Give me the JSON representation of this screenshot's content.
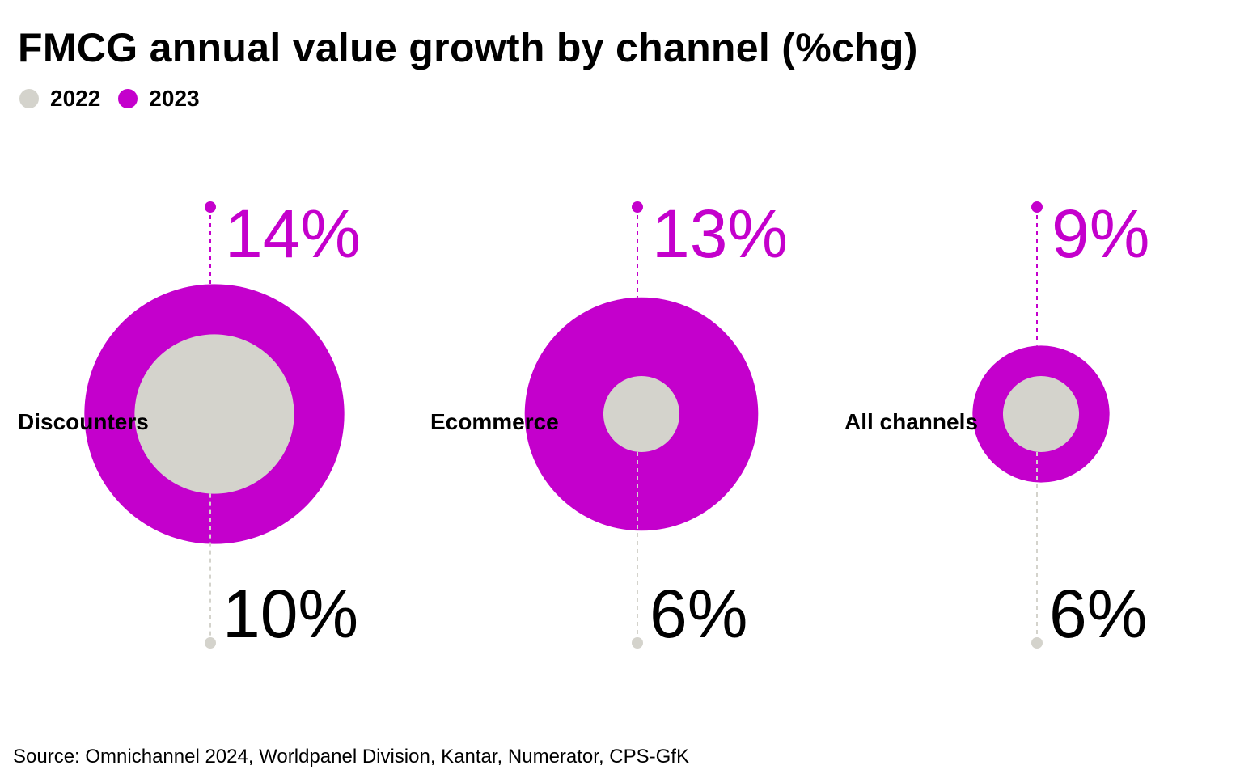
{
  "title": "FMCG annual value growth by channel (%chg)",
  "source": "Source: Omnichannel 2024, Worldpanel Division, Kantar, Numerator, CPS-GfK",
  "colors": {
    "y2022": "#d4d3cc",
    "y2023": "#c400cc",
    "text": "#000000"
  },
  "chart_data": {
    "type": "bubble",
    "title": "FMCG annual value growth by channel (%chg)",
    "legend_position": "top-left",
    "series": [
      {
        "name": "2022",
        "color": "#d4d3cc"
      },
      {
        "name": "2023",
        "color": "#c400cc"
      }
    ],
    "categories": [
      "Discounters",
      "Ecommerce",
      "All channels"
    ],
    "values_2022": [
      10,
      6,
      6
    ],
    "values_2023": [
      14,
      13,
      9
    ],
    "labels_2022": [
      "10%",
      "6%",
      "6%"
    ],
    "labels_2023": [
      "14%",
      "13%",
      "9%"
    ],
    "unit": "%"
  }
}
